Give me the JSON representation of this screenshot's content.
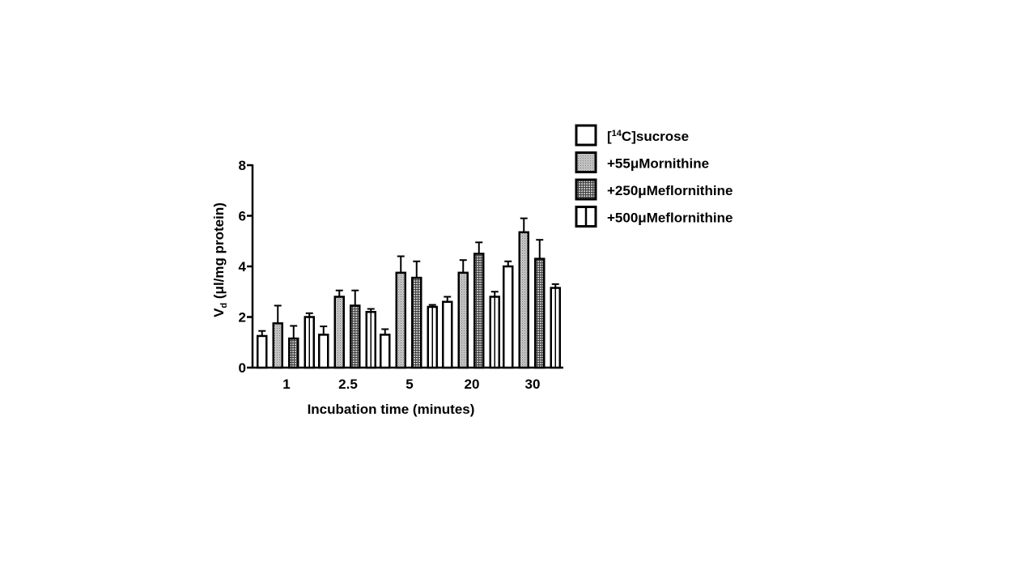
{
  "chart_data": {
    "type": "bar",
    "categories": [
      "1",
      "2.5",
      "5",
      "20",
      "30"
    ],
    "series": [
      {
        "name": "[14C]sucrose",
        "pattern": "white",
        "values": [
          1.25,
          1.3,
          1.3,
          2.6,
          4.0
        ],
        "errors": [
          0.2,
          0.33,
          0.22,
          0.2,
          0.2
        ]
      },
      {
        "name": "+55μMornithine",
        "pattern": "fine-dots",
        "values": [
          1.75,
          2.8,
          3.75,
          3.75,
          5.35
        ],
        "errors": [
          0.7,
          0.25,
          0.65,
          0.5,
          0.55
        ]
      },
      {
        "name": "+250μMeflornithine",
        "pattern": "grid",
        "values": [
          1.15,
          2.45,
          3.55,
          4.5,
          4.3
        ],
        "errors": [
          0.5,
          0.6,
          0.65,
          0.45,
          0.75
        ]
      },
      {
        "name": "+500μMeflornithine",
        "pattern": "vertical-stripes",
        "values": [
          2.0,
          2.2,
          2.4,
          2.8,
          3.15
        ],
        "errors": [
          0.15,
          0.12,
          0.08,
          0.2,
          0.15
        ]
      }
    ],
    "ylim": [
      0,
      8
    ],
    "yticks": [
      0,
      2,
      4,
      6,
      8
    ],
    "ylabel_main": "V",
    "ylabel_sub": "d",
    "ylabel_rest": " (μl/mg protein)",
    "xlabel": "Incubation time (minutes)",
    "legend_position": "top-right",
    "grid": false
  }
}
